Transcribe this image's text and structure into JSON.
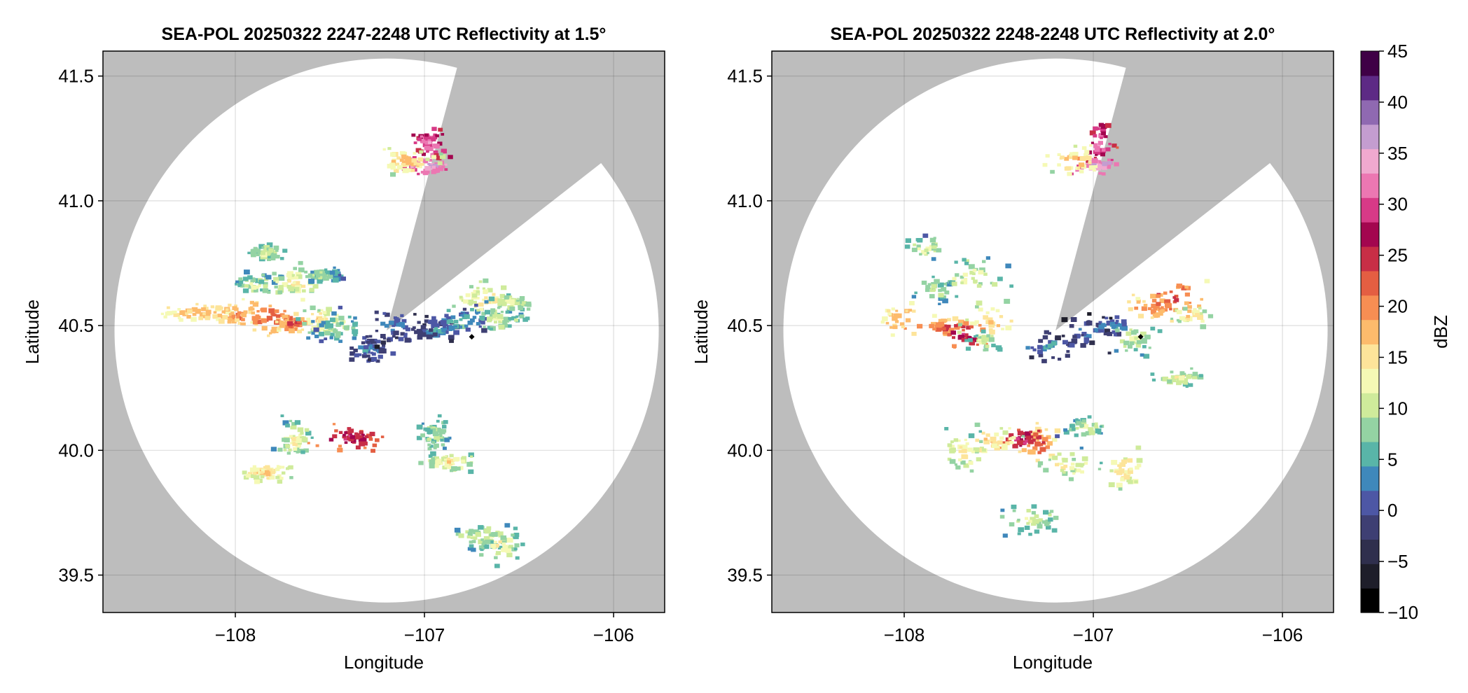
{
  "chart_data": [
    {
      "type": "heatmap",
      "title": "SEA-POL 20250322 2247-2248 UTC Reflectivity at 1.5°",
      "xlabel": "Longitude",
      "ylabel": "Latitude",
      "xlim": [
        -108.7,
        -105.73
      ],
      "ylim": [
        39.35,
        41.6
      ],
      "xticks": [
        -108,
        -107,
        -106
      ],
      "yticks": [
        39.5,
        40.0,
        40.5,
        41.0,
        41.5
      ],
      "xtick_labels": [
        "−108",
        "−107",
        "−106"
      ],
      "ytick_labels": [
        "39.5",
        "40.0",
        "40.5",
        "41.0",
        "41.5"
      ],
      "grid": true,
      "radar_center": [
        -107.2,
        40.48
      ],
      "radar_range_deg_lat": 1.09,
      "blocked_sector_azimuth_deg": [
        15,
        52
      ],
      "marker": {
        "lon": -106.75,
        "lat": 40.455,
        "shape": "diamond"
      },
      "echo_cells": [
        {
          "lon": -108.2,
          "lat": 40.56,
          "dbz": 19
        },
        {
          "lon": -108.0,
          "lat": 40.55,
          "dbz": 21
        },
        {
          "lon": -107.85,
          "lat": 40.54,
          "dbz": 23
        },
        {
          "lon": -107.7,
          "lat": 40.52,
          "dbz": 24
        },
        {
          "lon": -107.55,
          "lat": 40.53,
          "dbz": 16
        },
        {
          "lon": -107.45,
          "lat": 40.5,
          "dbz": 9
        },
        {
          "lon": -107.85,
          "lat": 40.8,
          "dbz": 12
        },
        {
          "lon": -107.9,
          "lat": 40.67,
          "dbz": 11
        },
        {
          "lon": -107.7,
          "lat": 40.68,
          "dbz": 14
        },
        {
          "lon": -107.55,
          "lat": 40.71,
          "dbz": 10
        },
        {
          "lon": -107.3,
          "lat": 40.41,
          "dbz": 4
        },
        {
          "lon": -107.15,
          "lat": 40.5,
          "dbz": 3
        },
        {
          "lon": -106.95,
          "lat": 40.49,
          "dbz": 5
        },
        {
          "lon": -106.82,
          "lat": 40.52,
          "dbz": 7
        },
        {
          "lon": -106.7,
          "lat": 40.62,
          "dbz": 15
        },
        {
          "lon": -106.55,
          "lat": 40.6,
          "dbz": 13
        },
        {
          "lon": -106.62,
          "lat": 40.53,
          "dbz": 11
        },
        {
          "lon": -106.98,
          "lat": 41.24,
          "dbz": 33
        },
        {
          "lon": -106.99,
          "lat": 41.15,
          "dbz": 37
        },
        {
          "lon": -107.1,
          "lat": 41.17,
          "dbz": 18
        },
        {
          "lon": -106.95,
          "lat": 40.07,
          "dbz": 11
        },
        {
          "lon": -106.88,
          "lat": 39.96,
          "dbz": 15
        },
        {
          "lon": -107.4,
          "lat": 40.06,
          "dbz": 28
        },
        {
          "lon": -107.7,
          "lat": 40.05,
          "dbz": 13
        },
        {
          "lon": -107.85,
          "lat": 39.92,
          "dbz": 17
        },
        {
          "lon": -106.7,
          "lat": 39.66,
          "dbz": 12
        },
        {
          "lon": -106.6,
          "lat": 39.63,
          "dbz": 14
        }
      ]
    },
    {
      "type": "heatmap",
      "title": "SEA-POL 20250322 2248-2248 UTC Reflectivity at 2.0°",
      "xlabel": "Longitude",
      "ylabel": "Latitude",
      "xlim": [
        -108.7,
        -105.73
      ],
      "ylim": [
        39.35,
        41.6
      ],
      "xticks": [
        -108,
        -107,
        -106
      ],
      "yticks": [
        39.5,
        40.0,
        40.5,
        41.0,
        41.5
      ],
      "xtick_labels": [
        "−108",
        "−107",
        "−106"
      ],
      "ytick_labels": [
        "39.5",
        "40.0",
        "40.5",
        "41.0",
        "41.5"
      ],
      "grid": true,
      "radar_center": [
        -107.2,
        40.48
      ],
      "radar_range_deg_lat": 1.09,
      "blocked_sector_azimuth_deg": [
        15,
        52
      ],
      "marker": {
        "lon": -106.75,
        "lat": 40.455,
        "shape": "diamond"
      },
      "echo_cells": [
        {
          "lon": -108.0,
          "lat": 40.52,
          "dbz": 20
        },
        {
          "lon": -107.8,
          "lat": 40.5,
          "dbz": 24
        },
        {
          "lon": -107.7,
          "lat": 40.47,
          "dbz": 27
        },
        {
          "lon": -107.55,
          "lat": 40.52,
          "dbz": 17
        },
        {
          "lon": -107.6,
          "lat": 40.44,
          "dbz": 12
        },
        {
          "lon": -107.85,
          "lat": 40.65,
          "dbz": 11
        },
        {
          "lon": -107.65,
          "lat": 40.7,
          "dbz": 13
        },
        {
          "lon": -107.9,
          "lat": 40.82,
          "dbz": 13
        },
        {
          "lon": -107.25,
          "lat": 40.42,
          "dbz": 5
        },
        {
          "lon": -107.05,
          "lat": 40.48,
          "dbz": 3
        },
        {
          "lon": -106.9,
          "lat": 40.5,
          "dbz": 6
        },
        {
          "lon": -106.7,
          "lat": 40.58,
          "dbz": 21
        },
        {
          "lon": -106.6,
          "lat": 40.62,
          "dbz": 24
        },
        {
          "lon": -106.5,
          "lat": 40.55,
          "dbz": 16
        },
        {
          "lon": -106.78,
          "lat": 40.45,
          "dbz": 12
        },
        {
          "lon": -106.98,
          "lat": 41.24,
          "dbz": 33
        },
        {
          "lon": -106.99,
          "lat": 41.15,
          "dbz": 37
        },
        {
          "lon": -107.1,
          "lat": 41.17,
          "dbz": 18
        },
        {
          "lon": -107.3,
          "lat": 40.03,
          "dbz": 22
        },
        {
          "lon": -107.37,
          "lat": 40.05,
          "dbz": 29
        },
        {
          "lon": -107.55,
          "lat": 40.05,
          "dbz": 17
        },
        {
          "lon": -107.7,
          "lat": 40.0,
          "dbz": 15
        },
        {
          "lon": -107.05,
          "lat": 40.1,
          "dbz": 11
        },
        {
          "lon": -107.15,
          "lat": 39.95,
          "dbz": 14
        },
        {
          "lon": -106.85,
          "lat": 39.93,
          "dbz": 17
        },
        {
          "lon": -106.55,
          "lat": 40.3,
          "dbz": 13
        },
        {
          "lon": -107.35,
          "lat": 39.73,
          "dbz": 12
        }
      ]
    }
  ],
  "colorbar": {
    "label": "dBZ",
    "min": -10,
    "max": 45,
    "ticks": [
      45,
      40,
      35,
      30,
      25,
      20,
      15,
      10,
      5,
      0,
      -5,
      -10
    ],
    "tick_labels": [
      "45",
      "40",
      "35",
      "30",
      "25",
      "20",
      "15",
      "10",
      "5",
      "0",
      "−5",
      "−10"
    ],
    "colormap": "Spectral_r + RdPu",
    "colors": [
      "#000000",
      "#1e1e2a",
      "#2f2f4d",
      "#3e3f73",
      "#4d57a5",
      "#3f88bb",
      "#59b5a8",
      "#94d3a3",
      "#cfeb9b",
      "#f5f9b5",
      "#fde49a",
      "#fdbb6c",
      "#f78e53",
      "#e45e42",
      "#c82e46",
      "#a3064f",
      "#d73a87",
      "#ec77b2",
      "#f0a9cf",
      "#c49dd0",
      "#8f69b1",
      "#5d2a85",
      "#3f0046"
    ],
    "masked_color": "#bdbdbd"
  }
}
